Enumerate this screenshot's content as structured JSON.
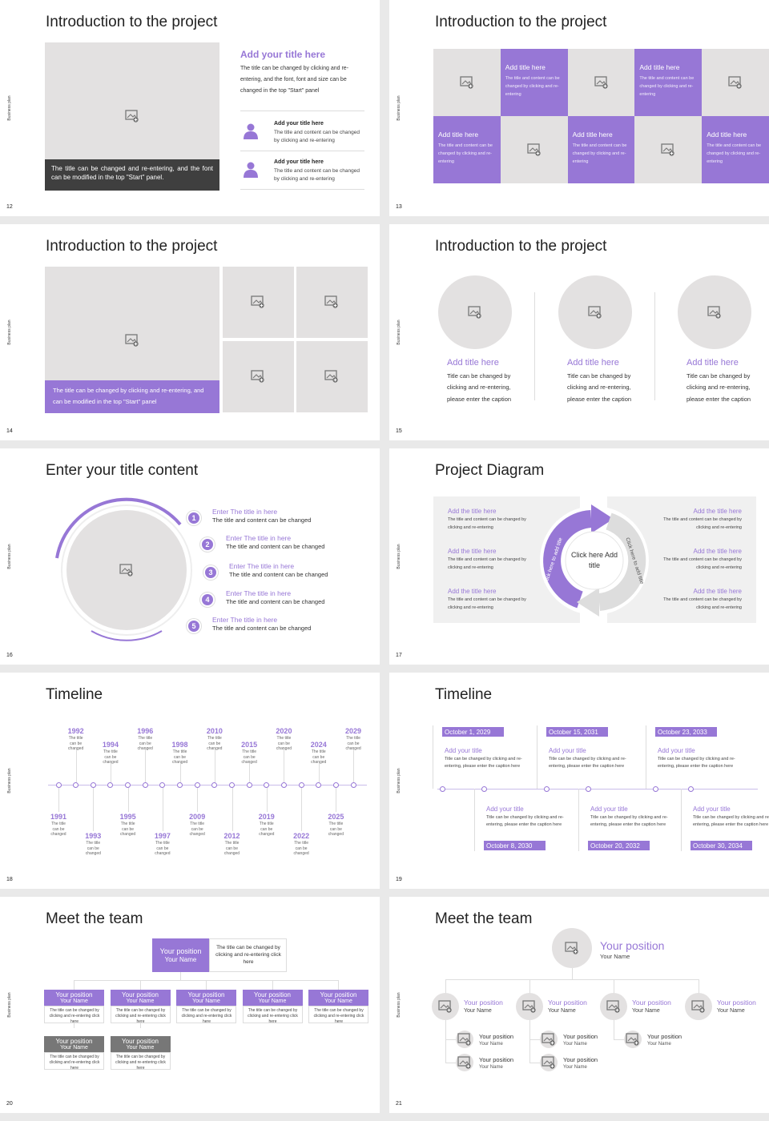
{
  "side_label": "Business plan",
  "slides": [
    {
      "number": "12",
      "title": "Introduction to the project",
      "caption": "The title can be changed and re-entering, and the font can be modified in the top \"Start\" panel.",
      "heading": "Add your title here",
      "body": "The title can be changed by clicking and re-entering, and the font, font and size can be changed in the top \"Start\" panel",
      "items": [
        {
          "title": "Add your title here",
          "text": "The title and content can be changed by clicking and re-entering"
        },
        {
          "title": "Add your title here",
          "text": "The title and content can be changed by clicking and re-entering"
        }
      ]
    },
    {
      "number": "13",
      "title": "Introduction to the project",
      "tiles": [
        {
          "title": "Add title here",
          "text": "The title and content can be changed by clicking and re-entering"
        },
        {
          "title": "Add title here",
          "text": "The title and content can be changed by clicking and re-entering"
        },
        {
          "title": "Add title here",
          "text": "The title and content can be changed by clicking and re-entering"
        },
        {
          "title": "Add title here",
          "text": "The title and content can be changed by clicking and re-entering"
        },
        {
          "title": "Add title here",
          "text": "The title and content can be changed by clicking and re-entering"
        }
      ]
    },
    {
      "number": "14",
      "title": "Introduction to the project",
      "caption": "The title can be changed by clicking and re-entering, and can be modified in the top \"Start\" panel"
    },
    {
      "number": "15",
      "title": "Introduction to the project",
      "columns": [
        {
          "title": "Add title here",
          "text": "Title can be changed by clicking and re-entering, please enter the caption"
        },
        {
          "title": "Add title here",
          "text": "Title can be changed by clicking and re-entering, please enter the caption"
        },
        {
          "title": "Add title here",
          "text": "Title can be changed by clicking and re-entering, please enter the caption"
        }
      ]
    },
    {
      "number": "16",
      "title": "Enter your title content",
      "items": [
        {
          "number": "1",
          "title": "Enter The title in here",
          "text": "The title and content can be changed"
        },
        {
          "number": "2",
          "title": "Enter The title in here",
          "text": "The title and content can be changed"
        },
        {
          "number": "3",
          "title": "Enter The title in here",
          "text": "The title and content can be changed"
        },
        {
          "number": "4",
          "title": "Enter The title in here",
          "text": "The title and content can be changed"
        },
        {
          "number": "5",
          "title": "Enter The title in here",
          "text": "The title and content can be changed"
        }
      ]
    },
    {
      "number": "17",
      "title": "Project Diagram",
      "center": "Click here Add title",
      "arc_labels": [
        "Click here to add title",
        "Click here to add title"
      ],
      "items": [
        {
          "title": "Add the title here",
          "text": "The title and content can be changed by clicking and re-entering"
        },
        {
          "title": "Add the title here",
          "text": "The title and content can be changed by clicking and re-entering"
        },
        {
          "title": "Add the title here",
          "text": "The title and content can be changed by clicking and re-entering"
        },
        {
          "title": "Add the title here",
          "text": "The title and content can be changed by clicking and re-entering"
        },
        {
          "title": "Add the title here",
          "text": "The title and content can be changed by clicking and re-entering"
        },
        {
          "title": "Add the title here",
          "text": "The title and content can be changed by clicking and re-entering"
        }
      ]
    },
    {
      "number": "18",
      "title": "Timeline",
      "events": [
        {
          "year": "1991",
          "text": "The title can be changed"
        },
        {
          "year": "1992",
          "text": "The title can be changed"
        },
        {
          "year": "1993",
          "text": "The title can be changed"
        },
        {
          "year": "1994",
          "text": "The title can be changed"
        },
        {
          "year": "1995",
          "text": "The title can be changed"
        },
        {
          "year": "1996",
          "text": "The title can be changed"
        },
        {
          "year": "1997",
          "text": "The title can be changed"
        },
        {
          "year": "1998",
          "text": "The title can be changed"
        },
        {
          "year": "2009",
          "text": "The title can be changed"
        },
        {
          "year": "2010",
          "text": "The title can be changed"
        },
        {
          "year": "2012",
          "text": "The title can be changed"
        },
        {
          "year": "2015",
          "text": "The title can be changed"
        },
        {
          "year": "2019",
          "text": "The title can be changed"
        },
        {
          "year": "2020",
          "text": "The title can be changed"
        },
        {
          "year": "2022",
          "text": "The title can be changed"
        },
        {
          "year": "2024",
          "text": "The title can be changed"
        },
        {
          "year": "2025",
          "text": "The title can be changed"
        },
        {
          "year": "2029",
          "text": "The title can be changed"
        }
      ]
    },
    {
      "number": "19",
      "title": "Timeline",
      "events": [
        {
          "date": "October 1, 2029",
          "title": "Add your title",
          "text": "Title can be changed by clicking and re-entering, please enter the caption here"
        },
        {
          "date": "October 8, 2030",
          "title": "Add your title",
          "text": "Title can be changed by clicking and re-entering, please enter the caption here"
        },
        {
          "date": "October 15, 2031",
          "title": "Add your title",
          "text": "Title can be changed by clicking and re-entering, please enter the caption here"
        },
        {
          "date": "October 20, 2032",
          "title": "Add your title",
          "text": "Title can be changed by clicking and re-entering, please enter the caption here"
        },
        {
          "date": "October 23, 2033",
          "title": "Add your title",
          "text": "Title can be changed by clicking and re-entering, please enter the caption here"
        },
        {
          "date": "October 30, 2034",
          "title": "Add your title",
          "text": "Title can be changed by clicking and re-entering, please enter the caption here"
        }
      ]
    },
    {
      "number": "20",
      "title": "Meet the team",
      "lead": {
        "position": "Your position",
        "name": "Your Name",
        "text": "The title can be changed by clicking and re-entering click here"
      },
      "members": [
        {
          "position": "Your position",
          "name": "Your Name",
          "text": "The title can be changed by clicking and re-entering click here"
        },
        {
          "position": "Your position",
          "name": "Your Name",
          "text": "The title can be changed by clicking and re-entering click here"
        },
        {
          "position": "Your position",
          "name": "Your Name",
          "text": "The title can be changed by clicking and re-entering click here"
        },
        {
          "position": "Your position",
          "name": "Your Name",
          "text": "The title can be changed by clicking and re-entering click here"
        },
        {
          "position": "Your position",
          "name": "Your Name",
          "text": "The title can be changed by clicking and re-entering click here"
        },
        {
          "position": "Your position",
          "name": "Your Name",
          "text": "The title can be changed by clicking and re-entering click here"
        },
        {
          "position": "Your position",
          "name": "Your Name",
          "text": "The title can be changed by clicking and re-entering click here"
        }
      ]
    },
    {
      "number": "21",
      "title": "Meet the team",
      "lead": {
        "position": "Your position",
        "name": "Your Name"
      },
      "members": [
        {
          "position": "Your position",
          "name": "Your Name"
        },
        {
          "position": "Your position",
          "name": "Your Name"
        },
        {
          "position": "Your position",
          "name": "Your Name"
        },
        {
          "position": "Your position",
          "name": "Your Name"
        }
      ],
      "subs": [
        {
          "position": "Your position",
          "name": "Your Name"
        },
        {
          "position": "Your position",
          "name": "Your Name"
        },
        {
          "position": "Your position",
          "name": "Your Name"
        },
        {
          "position": "Your position",
          "name": "Your Name"
        },
        {
          "position": "Your position",
          "name": "Your Name"
        }
      ]
    }
  ]
}
